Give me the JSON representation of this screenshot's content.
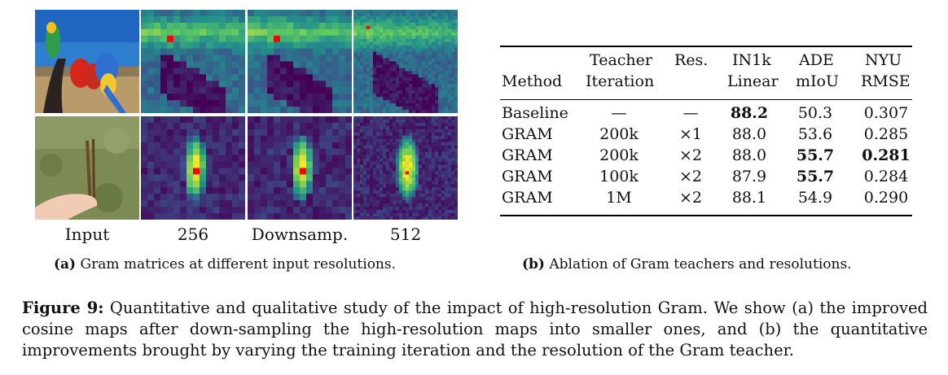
{
  "panel_a": {
    "column_labels": [
      "Input",
      "256",
      "Downsamp.",
      "512"
    ],
    "caption_label": "(a)",
    "caption_text": "Gram matrices at different input resolutions."
  },
  "panel_b": {
    "caption_label": "(b)",
    "caption_text": "Ablation of Gram teachers and resolutions.",
    "headers": {
      "method": "Method",
      "teacher_1": "Teacher",
      "teacher_2": "Iteration",
      "res": "Res.",
      "in1k_1": "IN1k",
      "in1k_2": "Linear",
      "ade_1": "ADE",
      "ade_2": "mIoU",
      "nyu_1": "NYU",
      "nyu_2": "RMSE"
    },
    "rows": [
      {
        "method": "Baseline",
        "iter": "—",
        "res": "—",
        "in1k": "88.2",
        "ade": "50.3",
        "nyu": "0.307"
      },
      {
        "method": "GRAM",
        "iter": "200k",
        "res": "×1",
        "in1k": "88.0",
        "ade": "53.6",
        "nyu": "0.285"
      },
      {
        "method": "GRAM",
        "iter": "200k",
        "res": "×2",
        "in1k": "88.0",
        "ade": "55.7",
        "nyu": "0.281"
      },
      {
        "method": "GRAM",
        "iter": "100k",
        "res": "×2",
        "in1k": "87.9",
        "ade": "55.7",
        "nyu": "0.284"
      },
      {
        "method": "GRAM",
        "iter": "1M",
        "res": "×2",
        "in1k": "88.1",
        "ade": "54.9",
        "nyu": "0.290"
      }
    ]
  },
  "figure_caption": {
    "label": "Figure 9:",
    "text": "Quantitative and qualitative study of the impact of high-resolution Gram. We show (a) the improved cosine maps after down-sampling the high-resolution maps into smaller ones, and (b) the quantitative improvements brought by varying the training iteration and the resolution of the Gram teacher."
  },
  "colors": {
    "viridis_low": "#440154",
    "viridis_mid": "#21918c",
    "viridis_high": "#fde725",
    "query_marker": "#ff0000"
  }
}
